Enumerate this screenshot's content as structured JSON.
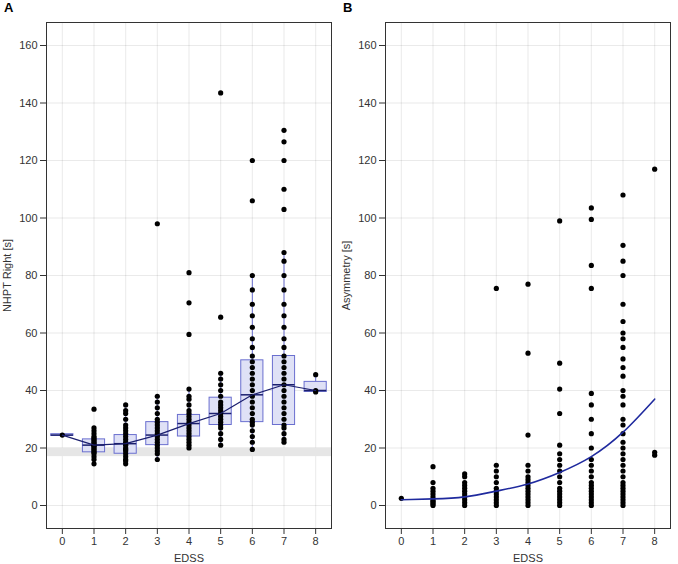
{
  "chart_data": [
    {
      "type": "box",
      "title": "A",
      "x_label": "EDSS",
      "y_label": "NHPT Right [s]",
      "categories": [
        0,
        1,
        2,
        3,
        4,
        5,
        6,
        7,
        8
      ],
      "boxes": [
        {
          "low": 24.2,
          "q1": 24.2,
          "median": 24.5,
          "q3": 24.8,
          "high": 24.8
        },
        {
          "low": 14.5,
          "q1": 18.5,
          "median": 21,
          "q3": 23,
          "high": 27
        },
        {
          "low": 14.5,
          "q1": 18,
          "median": 21.5,
          "q3": 24.5,
          "high": 35
        },
        {
          "low": 16,
          "q1": 21,
          "median": 24.5,
          "q3": 29,
          "high": 38
        },
        {
          "low": 20,
          "q1": 24,
          "median": 28.5,
          "q3": 31.5,
          "high": 40.5
        },
        {
          "low": 21,
          "q1": 28,
          "median": 32,
          "q3": 37.5,
          "high": 46
        },
        {
          "low": 19.5,
          "q1": 29,
          "median": 38.5,
          "q3": 50.5,
          "high": 80
        },
        {
          "low": 22,
          "q1": 28,
          "median": 42,
          "q3": 52,
          "high": 88
        },
        {
          "low": 39.5,
          "q1": 39.5,
          "median": 40,
          "q3": 43,
          "high": 45.5
        }
      ],
      "points": [
        [
          24.5
        ],
        [
          14.5,
          16,
          17,
          18,
          18.5,
          19,
          19.5,
          20,
          20.5,
          21,
          21,
          21.5,
          22,
          22.5,
          23,
          23.5,
          24,
          25,
          26,
          27,
          33.5
        ],
        [
          14.5,
          15.5,
          16,
          17,
          18,
          19,
          19.5,
          20,
          21,
          21.5,
          22,
          23,
          24,
          25,
          26,
          27,
          28,
          30,
          32,
          33,
          35
        ],
        [
          16,
          18,
          19,
          20,
          21,
          22,
          23,
          24,
          25,
          26,
          27,
          28,
          29,
          30,
          32,
          34,
          36,
          38,
          98
        ],
        [
          20,
          21,
          22,
          23,
          24,
          25,
          26,
          27,
          28,
          29,
          30,
          31,
          32,
          33,
          35,
          37,
          38,
          40.5,
          59.5,
          70.5,
          81
        ],
        [
          21,
          23,
          25,
          27,
          28,
          29,
          30,
          31,
          32,
          33,
          34,
          35,
          36,
          38,
          40,
          42,
          44,
          46,
          65.5,
          143.5
        ],
        [
          19.5,
          22,
          24,
          26,
          28,
          29,
          30,
          32,
          34,
          36,
          38,
          40,
          42,
          44,
          46,
          48,
          50,
          52,
          55,
          58,
          62,
          66,
          70,
          75,
          80,
          106,
          120
        ],
        [
          22,
          23,
          25,
          27,
          28,
          30,
          32,
          34,
          36,
          38,
          40,
          42,
          44,
          46,
          48,
          50,
          52,
          55,
          58,
          62,
          66,
          70,
          75,
          80,
          85,
          88,
          103,
          110,
          120,
          126.5,
          130.5
        ],
        [
          39.5,
          40,
          45.5
        ]
      ],
      "reference_band": [
        17,
        20
      ],
      "color": "#6a6fcf",
      "colors": [
        "#dfe1f6",
        "#1b1f6e",
        "#000000",
        "#e6e6e6"
      ],
      "xlim": [
        -0.5,
        8.5
      ],
      "xticks": [
        0,
        1,
        2,
        3,
        4,
        5,
        6,
        7,
        8
      ],
      "ylim": [
        -8,
        168
      ],
      "yticks": [
        0,
        20,
        40,
        60,
        80,
        100,
        120,
        140,
        160
      ],
      "grid": true
    },
    {
      "type": "scatter",
      "title": "B",
      "x_label": "EDSS",
      "y_label": "Asymmetry [s]",
      "points": [
        {
          "x": 0,
          "y": [
            2.5
          ]
        },
        {
          "x": 1,
          "y": [
            0,
            0.5,
            1,
            1.5,
            2,
            3,
            4,
            5,
            6,
            8,
            13.5
          ]
        },
        {
          "x": 2,
          "y": [
            0,
            1,
            2,
            3,
            4,
            5,
            6,
            7,
            8,
            10,
            11
          ]
        },
        {
          "x": 3,
          "y": [
            0,
            1,
            2,
            3,
            4,
            5,
            6,
            8,
            10,
            12,
            14,
            75.5
          ]
        },
        {
          "x": 4,
          "y": [
            0,
            1,
            2,
            3,
            4,
            5,
            6,
            7,
            8,
            9,
            10,
            12,
            14,
            24.5,
            53,
            77
          ]
        },
        {
          "x": 5,
          "y": [
            0,
            1,
            2,
            3,
            4,
            5,
            6,
            8,
            10,
            12,
            14,
            16,
            18,
            21,
            32,
            40.5,
            49.5,
            99
          ]
        },
        {
          "x": 6,
          "y": [
            0,
            1,
            2,
            3,
            4,
            5,
            6,
            7,
            8,
            10,
            12,
            14,
            16,
            20,
            25,
            30,
            35,
            39,
            75.5,
            83.5,
            99.5,
            103.5
          ]
        },
        {
          "x": 7,
          "y": [
            0,
            1,
            2,
            3,
            4,
            5,
            6,
            7,
            8,
            10,
            12,
            14,
            16,
            18,
            20,
            22,
            25,
            28,
            30,
            35,
            38,
            40,
            45,
            48,
            51,
            55,
            58,
            60,
            64,
            70,
            80,
            85,
            90.5,
            108
          ]
        },
        {
          "x": 8,
          "y": [
            17.5,
            18.5,
            117
          ]
        }
      ],
      "trend": {
        "x": [
          0,
          1,
          2,
          3,
          4,
          5,
          6,
          7,
          8
        ],
        "y": [
          2,
          2.3,
          3,
          5,
          7.5,
          11.5,
          17,
          25.5,
          37
        ]
      },
      "color": "#000000",
      "colors": [
        "#1f2a9e"
      ],
      "xlim": [
        -0.5,
        8.5
      ],
      "xticks": [
        0,
        1,
        2,
        3,
        4,
        5,
        6,
        7,
        8
      ],
      "ylim": [
        -8,
        168
      ],
      "yticks": [
        0,
        20,
        40,
        60,
        80,
        100,
        120,
        140,
        160
      ],
      "grid": true
    }
  ]
}
